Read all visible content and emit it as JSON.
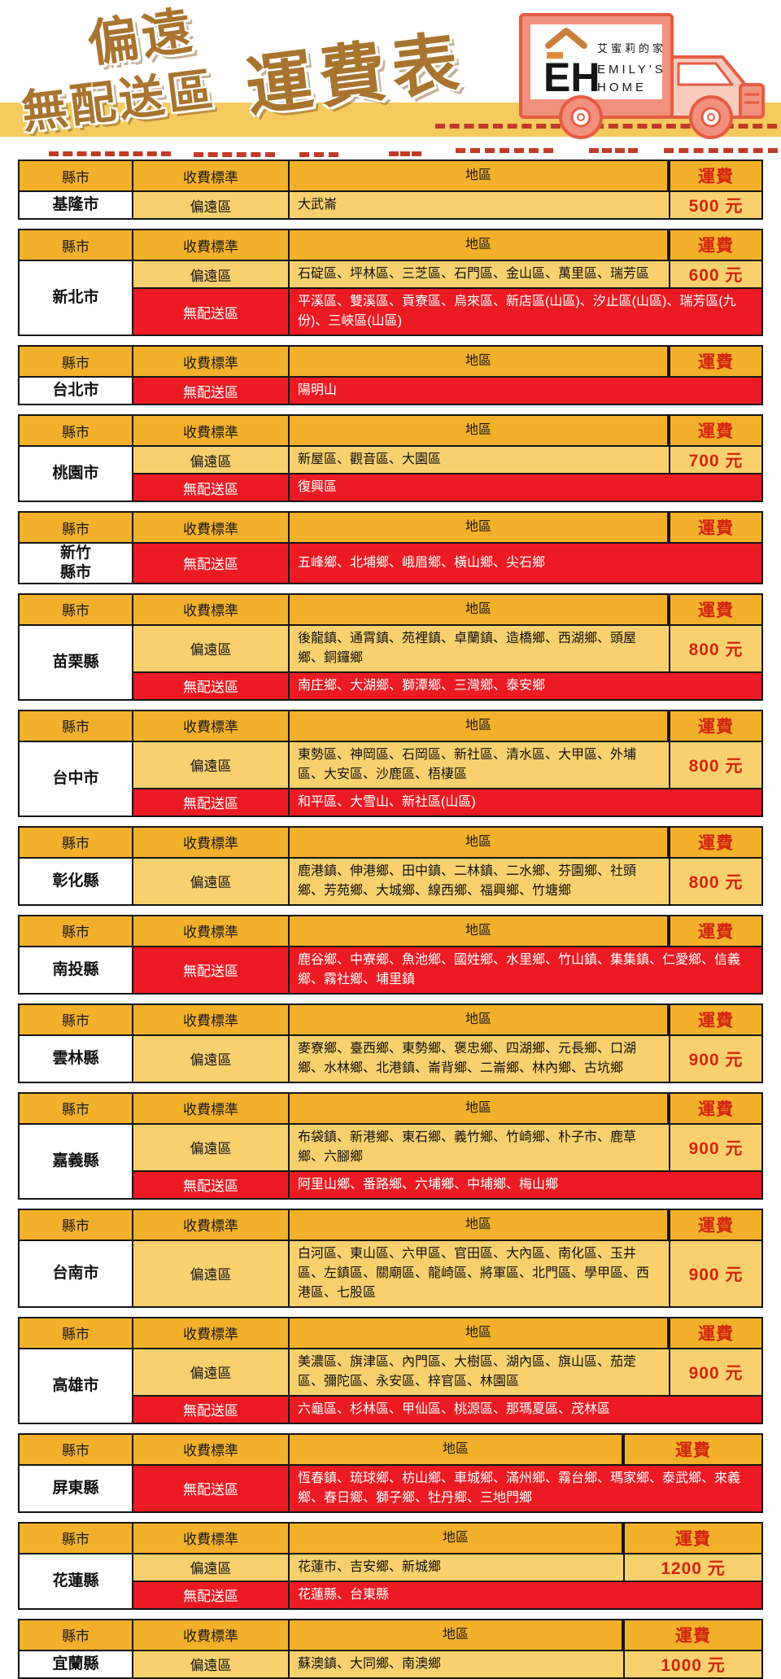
{
  "header": {
    "title_line1": "偏遠",
    "title_line2": "無配送區",
    "title_main": "運費表",
    "logo": {
      "monogram": "EH",
      "brand_zh": "艾蜜莉的家",
      "brand_en1": "EMILY'S",
      "brand_en2": "HOME"
    }
  },
  "columns": {
    "county": "縣市",
    "standard": "收費標準",
    "area": "地區",
    "fee": "運費"
  },
  "labels": {
    "remote": "偏遠區",
    "nodeliv": "無配送區"
  },
  "colors": {
    "header_bg": "#F3B02A",
    "remote_row_bg": "#F8D16E",
    "no_delivery_bg": "#EC1B23",
    "price_text": "#D3250F",
    "title_brown": "#A8742F",
    "band_yellow": "#F5CA5F",
    "truck_body": "#F2907E",
    "truck_outline": "#E55C42",
    "dash_red": "#C13A28"
  },
  "tables": [
    {
      "county": "基隆市",
      "wide": false,
      "rows": [
        {
          "type": "remote",
          "areas": "大武崙",
          "fee": "500 元"
        }
      ]
    },
    {
      "county": "新北市",
      "wide": false,
      "rows": [
        {
          "type": "remote",
          "areas": "石碇區、坪林區、三芝區、石門區、金山區、萬里區、瑞芳區",
          "fee": "600 元"
        },
        {
          "type": "nodeliv",
          "areas": "平溪區、雙溪區、貢寮區、烏來區、新店區(山區)、汐止區(山區)、瑞芳區(九份)、三峽區(山區)"
        }
      ]
    },
    {
      "county": "台北市",
      "wide": false,
      "rows": [
        {
          "type": "nodeliv",
          "areas": "陽明山"
        }
      ]
    },
    {
      "county": "桃園市",
      "wide": false,
      "rows": [
        {
          "type": "remote",
          "areas": "新屋區、觀音區、大園區",
          "fee": "700 元"
        },
        {
          "type": "nodeliv",
          "areas": "復興區"
        }
      ]
    },
    {
      "county": "新竹\n縣市",
      "wide": false,
      "rows": [
        {
          "type": "nodeliv",
          "areas": "五峰鄉、北埔鄉、峨眉鄉、橫山鄉、尖石鄉"
        }
      ]
    },
    {
      "county": "苗栗縣",
      "wide": false,
      "rows": [
        {
          "type": "remote",
          "areas": "後龍鎮、通霄鎮、苑裡鎮、卓蘭鎮、造橋鄉、西湖鄉、頭屋鄉、銅鑼鄉",
          "fee": "800 元"
        },
        {
          "type": "nodeliv",
          "areas": "南庄鄉、大湖鄉、獅潭鄉、三灣鄉、泰安鄉"
        }
      ]
    },
    {
      "county": "台中市",
      "wide": false,
      "rows": [
        {
          "type": "remote",
          "areas": "東勢區、神岡區、石岡區、新社區、清水區、大甲區、外埔區、大安區、沙鹿區、梧棲區",
          "fee": "800 元"
        },
        {
          "type": "nodeliv",
          "areas": "和平區、大雪山、新社區(山區)"
        }
      ]
    },
    {
      "county": "彰化縣",
      "wide": false,
      "rows": [
        {
          "type": "remote",
          "areas": "鹿港鎮、伸港鄉、田中鎮、二林鎮、二水鄉、芬園鄉、社頭鄉、芳苑鄉、大城鄉、線西鄉、福興鄉、竹塘鄉",
          "fee": "800 元"
        }
      ]
    },
    {
      "county": "南投縣",
      "wide": false,
      "rows": [
        {
          "type": "nodeliv",
          "areas": "鹿谷鄉、中寮鄉、魚池鄉、國姓鄉、水里鄉、竹山鎮、集集鎮、仁愛鄉、信義鄉、霧社鄉、埔里鎮"
        }
      ]
    },
    {
      "county": "雲林縣",
      "wide": false,
      "rows": [
        {
          "type": "remote",
          "areas": "麥寮鄉、臺西鄉、東勢鄉、褒忠鄉、四湖鄉、元長鄉、口湖鄉、水林鄉、北港鎮、崙背鄉、二崙鄉、林內鄉、古坑鄉",
          "fee": "900 元"
        }
      ]
    },
    {
      "county": "嘉義縣",
      "wide": false,
      "rows": [
        {
          "type": "remote",
          "areas": "布袋鎮、新港鄉、東石鄉、義竹鄉、竹崎鄉、朴子市、鹿草鄉、六腳鄉",
          "fee": "900 元"
        },
        {
          "type": "nodeliv",
          "areas": "阿里山鄉、番路鄉、六埔鄉、中埔鄉、梅山鄉"
        }
      ]
    },
    {
      "county": "台南市",
      "wide": false,
      "rows": [
        {
          "type": "remote",
          "areas": "白河區、東山區、六甲區、官田區、大內區、南化區、玉井區、左鎮區、關廟區、龍崎區、將軍區、北門區、學甲區、西港區、七股區",
          "fee": "900 元"
        }
      ]
    },
    {
      "county": "高雄市",
      "wide": false,
      "rows": [
        {
          "type": "remote",
          "areas": "美濃區、旗津區、內門區、大樹區、湖內區、旗山區、茄萣區、彌陀區、永安區、梓官區、林園區",
          "fee": "900 元"
        },
        {
          "type": "nodeliv",
          "areas": "六龜區、杉林區、甲仙區、桃源區、那瑪夏區、茂林區"
        }
      ]
    },
    {
      "county": "屏東縣",
      "wide": true,
      "rows": [
        {
          "type": "nodeliv",
          "areas": "恆春鎮、琉球鄉、枋山鄉、車城鄉、滿州鄉、霧台鄉、瑪家鄉、泰武鄉、來義鄉、春日鄉、獅子鄉、牡丹鄉、三地門鄉"
        }
      ]
    },
    {
      "county": "花蓮縣",
      "wide": true,
      "rows": [
        {
          "type": "remote",
          "areas": "花蓮市、吉安鄉、新城鄉",
          "fee": "1200 元"
        },
        {
          "type": "nodeliv",
          "areas": "花蓮縣、台東縣"
        }
      ]
    },
    {
      "county": "宜蘭縣",
      "wide": true,
      "rows": [
        {
          "type": "remote",
          "areas": "蘇澳鎮、大同鄉、南澳鄉",
          "fee": "1000 元"
        }
      ]
    }
  ]
}
